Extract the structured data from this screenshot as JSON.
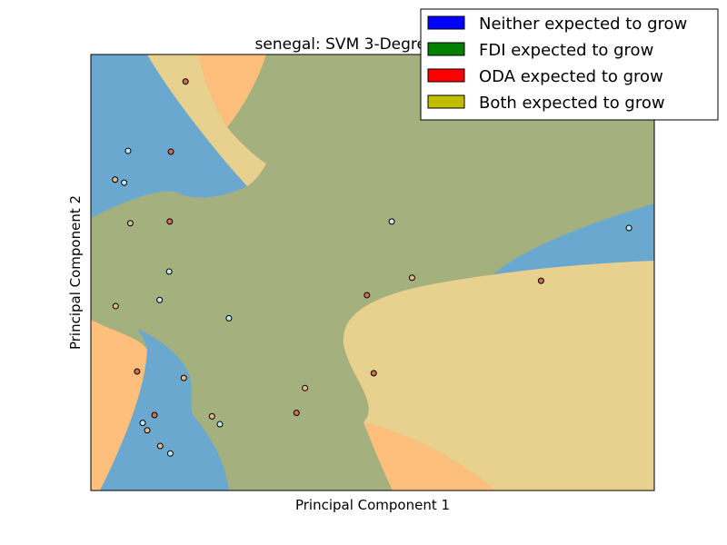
{
  "chart_data": {
    "type": "scatter",
    "title": "senegal: SVM 3-Degree",
    "xlabel": "Principal Component 1",
    "ylabel": "Principal Component 2",
    "xlim": [
      0,
      100
    ],
    "ylim": [
      0,
      100
    ],
    "ticks": "none",
    "grid": false,
    "legend": {
      "placement": "top-right",
      "entries": [
        {
          "label": "Neither expected to grow",
          "color": "#0000ff"
        },
        {
          "label": "FDI expected to grow",
          "color": "#008000"
        },
        {
          "label": "ODA expected to grow",
          "color": "#ff0000"
        },
        {
          "label": "Both expected to grow",
          "color": "#bfbf00"
        }
      ]
    },
    "region_colors": {
      "neither": "#6aa8d0",
      "fdi": "#a4b07e",
      "oda": "#fdbf7b",
      "both": "#e8d08e"
    },
    "point_colors": {
      "light": "#c4e6f3",
      "tan": "#e5b890",
      "dark": "#d0704a"
    },
    "points": [
      {
        "x": 16.8,
        "y": 93.8,
        "c": "dark"
      },
      {
        "x": 14.2,
        "y": 77.7,
        "c": "dark"
      },
      {
        "x": 14.0,
        "y": 61.7,
        "c": "dark"
      },
      {
        "x": 16.5,
        "y": 25.8,
        "c": "tan"
      },
      {
        "x": 13.9,
        "y": 50.2,
        "c": "light"
      },
      {
        "x": 12.2,
        "y": 43.7,
        "c": "light"
      },
      {
        "x": 10.0,
        "y": 13.8,
        "c": "tan"
      },
      {
        "x": 12.3,
        "y": 10.2,
        "c": "tan"
      },
      {
        "x": 14.1,
        "y": 8.5,
        "c": "light"
      },
      {
        "x": 6.6,
        "y": 77.9,
        "c": "light"
      },
      {
        "x": 5.9,
        "y": 70.6,
        "c": "light"
      },
      {
        "x": 4.3,
        "y": 71.3,
        "c": "tan"
      },
      {
        "x": 7.0,
        "y": 61.3,
        "c": "tan"
      },
      {
        "x": 4.4,
        "y": 42.3,
        "c": "tan"
      },
      {
        "x": 8.2,
        "y": 27.3,
        "c": "dark"
      },
      {
        "x": 11.3,
        "y": 17.3,
        "c": "dark"
      },
      {
        "x": 9.2,
        "y": 15.5,
        "c": "light"
      },
      {
        "x": 24.5,
        "y": 39.5,
        "c": "light"
      },
      {
        "x": 21.5,
        "y": 17.0,
        "c": "tan"
      },
      {
        "x": 22.9,
        "y": 15.2,
        "c": "light"
      },
      {
        "x": 38.0,
        "y": 23.5,
        "c": "tan"
      },
      {
        "x": 36.5,
        "y": 17.8,
        "c": "dark"
      },
      {
        "x": 49.0,
        "y": 44.8,
        "c": "dark"
      },
      {
        "x": 50.2,
        "y": 26.9,
        "c": "dark"
      },
      {
        "x": 53.4,
        "y": 61.7,
        "c": "light"
      },
      {
        "x": 57.0,
        "y": 48.8,
        "c": "tan"
      },
      {
        "x": 79.9,
        "y": 48.1,
        "c": "dark"
      },
      {
        "x": 95.5,
        "y": 60.2,
        "c": "light"
      }
    ]
  }
}
